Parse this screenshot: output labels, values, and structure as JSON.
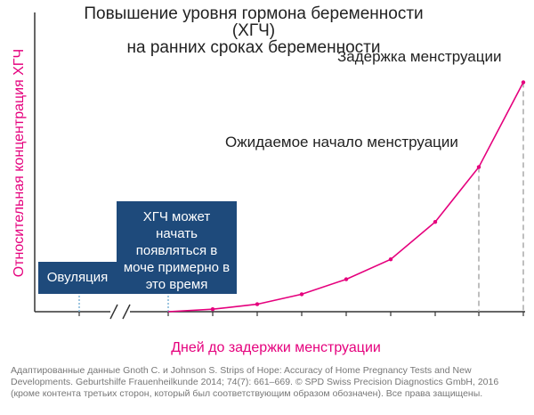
{
  "chart_data": {
    "type": "line",
    "title_line1": "Повышение уровня гормона беременности (ХГЧ)",
    "title_line2": "на ранних сроках беременности",
    "ylabel": "Относительная концентрация ХГЧ",
    "xlabel": "Дней до задержки менструации",
    "series": [
      {
        "values": [
          0,
          0,
          1,
          3,
          7,
          13,
          21,
          36,
          58,
          92
        ]
      }
    ],
    "ylim": [
      0,
      100
    ],
    "grid": false,
    "annotations": {
      "expected_period": "Ожидаемое начало менструации",
      "missed_period": "Задержка менструации",
      "ovulation": "Овуляция",
      "hcg_box": "ХГЧ может начать появляться в моче примерно в это время"
    },
    "colors": {
      "line": "#e5007d",
      "box": "#1e4a7b",
      "marker_ovulation": "#7fb3d5",
      "dashed": "#aaaaaa"
    }
  },
  "source": {
    "line1": "Адаптированные данные Gnoth C. и Johnson S. Strips of Hope: Accuracy of Home Pregnancy Tests and New",
    "line2": "Developments. Geburtshilfe Frauenheilkunde 2014; 74(7): 661–669. © SPD Swiss Precision Diagnostics GmbH, 2016",
    "line3": "(кроме контента третьих сторон, который был соответствующим образом обозначен). Все права защищены."
  }
}
